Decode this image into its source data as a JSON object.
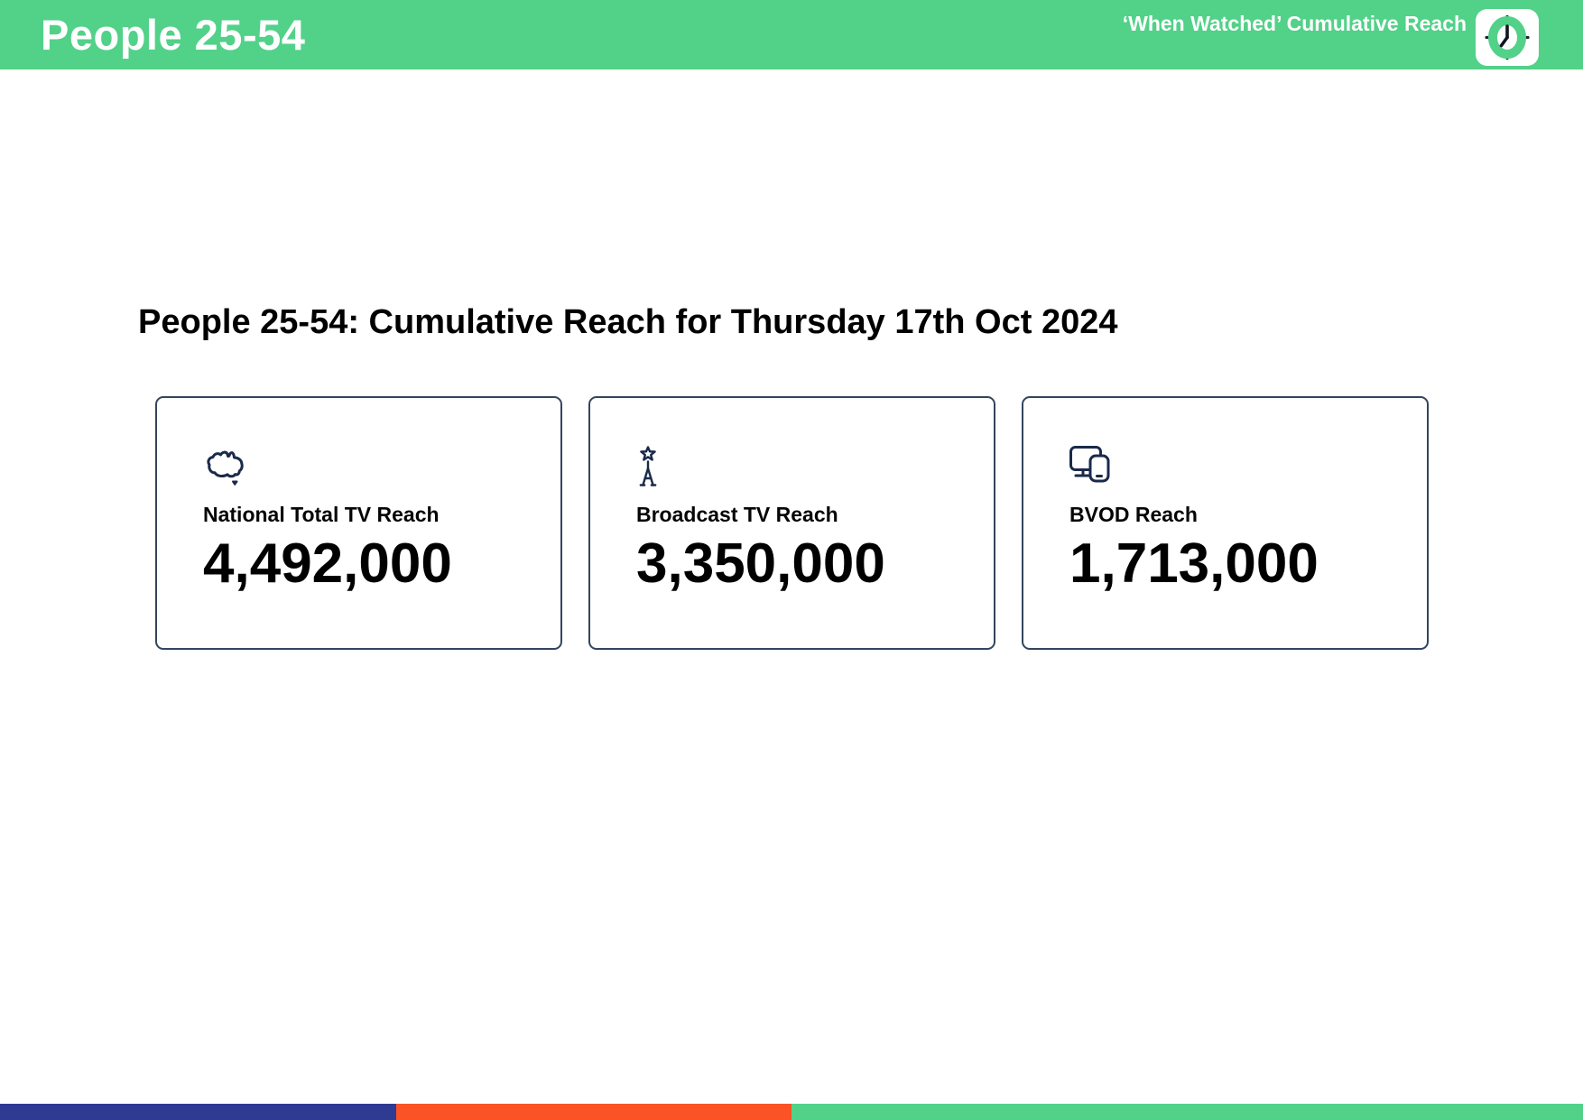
{
  "header": {
    "title": "People 25-54",
    "subtitle": "‘When Watched’ Cumulative Reach",
    "clock_icon": "clock-logo"
  },
  "main": {
    "heading": "People 25-54: Cumulative Reach for Thursday 17th Oct 2024",
    "cards": [
      {
        "icon": "australia-map-icon",
        "label": "National Total TV Reach",
        "value": "4,492,000"
      },
      {
        "icon": "broadcast-tower-icon",
        "label": "Broadcast TV Reach",
        "value": "3,350,000"
      },
      {
        "icon": "devices-icon",
        "label": "BVOD Reach",
        "value": "1,713,000"
      }
    ]
  },
  "footer": {
    "segments": [
      {
        "name": "blue-segment",
        "color": "#2f3b93",
        "width_pct": 25
      },
      {
        "name": "orange-segment",
        "color": "#fb5326",
        "width_pct": 25
      },
      {
        "name": "green-segment",
        "color": "#52d189",
        "width_pct": 50
      }
    ]
  },
  "colors": {
    "brand_green": "#52d189",
    "icon_navy": "#1b2a4a",
    "card_border": "#33455e",
    "footer_blue": "#2f3b93",
    "footer_orange": "#fb5326",
    "footer_green": "#52d189"
  }
}
